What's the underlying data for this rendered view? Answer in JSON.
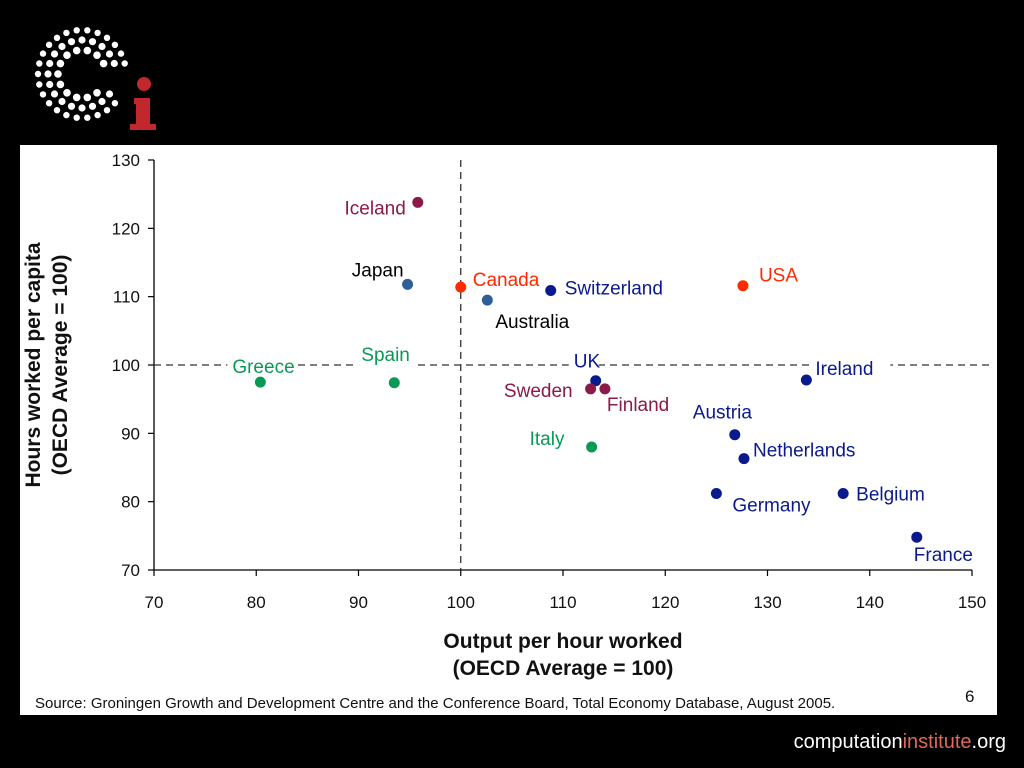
{
  "logo": {
    "letter": "i",
    "ring_color": "#ffffff",
    "letter_color": "#c0282d"
  },
  "footer": {
    "prefix": "computation",
    "accent": "institute",
    "suffix": ".org",
    "accent_color": "#e0685a"
  },
  "page_number": "6",
  "source": "Source: Groningen Growth and Development Centre and the Conference Board, Total Economy Database, August 2005.",
  "chart_data": {
    "type": "scatter",
    "title": "",
    "xlabel": [
      "Output per hour worked",
      "(OECD Average = 100)"
    ],
    "ylabel": [
      "Hours worked per capita",
      "(OECD Average = 100)"
    ],
    "xlim": [
      70,
      150
    ],
    "ylim": [
      70,
      130
    ],
    "xticks": [
      70,
      80,
      90,
      100,
      110,
      120,
      130,
      140,
      150
    ],
    "yticks": [
      70,
      80,
      90,
      100,
      110,
      120,
      130
    ],
    "reference_lines": {
      "x": 100,
      "y": 100,
      "style": "dashed"
    },
    "grid": false,
    "colors": {
      "red": "#ff2a00",
      "navy": "#0a1a8c",
      "green": "#0a9955",
      "maroon": "#8a1a4a",
      "steel": "#2e5f99",
      "black": "#000000"
    },
    "points": [
      {
        "label": "Iceland",
        "x": 95.8,
        "y": 123.8,
        "color": "maroon",
        "label_color": "maroon"
      },
      {
        "label": "Japan",
        "x": 94.8,
        "y": 111.8,
        "color": "steel",
        "label_color": "black"
      },
      {
        "label": "Canada",
        "x": 100.0,
        "y": 111.4,
        "color": "red",
        "label_color": "red"
      },
      {
        "label": "Australia",
        "x": 102.6,
        "y": 109.5,
        "color": "steel",
        "label_color": "black"
      },
      {
        "label": "Switzerland",
        "x": 108.8,
        "y": 110.9,
        "color": "navy",
        "label_color": "navy"
      },
      {
        "label": "USA",
        "x": 127.6,
        "y": 111.6,
        "color": "red",
        "label_color": "red"
      },
      {
        "label": "Greece",
        "x": 80.4,
        "y": 97.5,
        "color": "green",
        "label_color": "green"
      },
      {
        "label": "Spain",
        "x": 93.5,
        "y": 97.4,
        "color": "green",
        "label_color": "green"
      },
      {
        "label": "UK",
        "x": 113.2,
        "y": 97.7,
        "color": "navy",
        "label_color": "navy"
      },
      {
        "label": "Sweden",
        "x": 112.7,
        "y": 96.5,
        "color": "maroon",
        "label_color": "maroon"
      },
      {
        "label": "Finland",
        "x": 114.1,
        "y": 96.5,
        "color": "maroon",
        "label_color": "maroon"
      },
      {
        "label": "Ireland",
        "x": 133.8,
        "y": 97.8,
        "color": "navy",
        "label_color": "navy"
      },
      {
        "label": "Italy",
        "x": 112.8,
        "y": 88.0,
        "color": "green",
        "label_color": "green"
      },
      {
        "label": "Austria",
        "x": 126.8,
        "y": 89.8,
        "color": "navy",
        "label_color": "navy"
      },
      {
        "label": "Netherlands",
        "x": 127.7,
        "y": 86.3,
        "color": "navy",
        "label_color": "navy"
      },
      {
        "label": "Germany",
        "x": 125.0,
        "y": 81.2,
        "color": "navy",
        "label_color": "navy"
      },
      {
        "label": "Belgium",
        "x": 137.4,
        "y": 81.2,
        "color": "navy",
        "label_color": "navy"
      },
      {
        "label": "France",
        "x": 144.6,
        "y": 74.8,
        "color": "navy",
        "label_color": "navy"
      }
    ]
  }
}
